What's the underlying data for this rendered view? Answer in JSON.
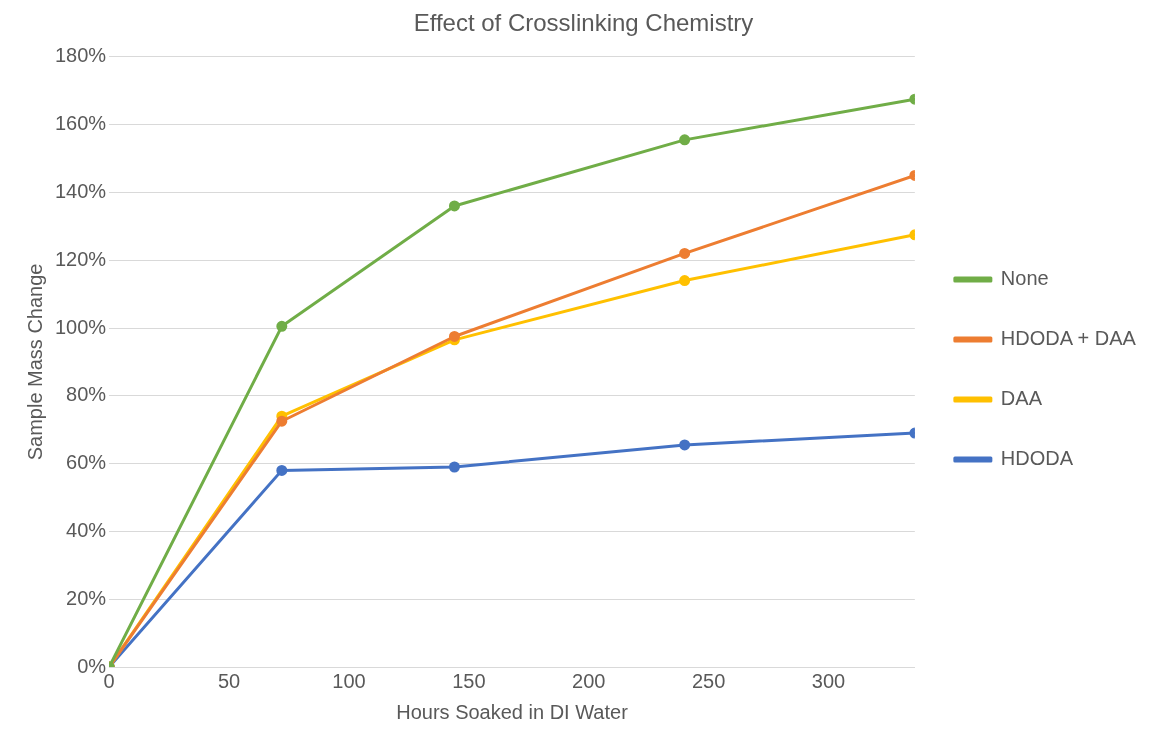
{
  "chart_data": {
    "type": "line",
    "title": "Effect of Crosslinking Chemistry",
    "xlabel": "Hours Soaked in DI Water",
    "ylabel": "Sample Mass Change",
    "x": [
      0,
      72,
      144,
      240,
      336
    ],
    "series": [
      {
        "name": "None",
        "color": "#70ad47",
        "values": [
          0,
          100.5,
          136,
          155.5,
          167.5
        ]
      },
      {
        "name": "HDODA + DAA",
        "color": "#ed7d31",
        "values": [
          0,
          72.5,
          97.5,
          122,
          145
        ]
      },
      {
        "name": "DAA",
        "color": "#ffc000",
        "values": [
          0,
          74,
          96.5,
          114,
          127.5
        ]
      },
      {
        "name": "HDODA",
        "color": "#4472c4",
        "values": [
          0,
          58,
          59,
          65.5,
          69
        ]
      }
    ],
    "xlim": [
      0,
      336
    ],
    "xticks": [
      0,
      50,
      100,
      150,
      200,
      250,
      300
    ],
    "ylim": [
      0,
      180
    ],
    "yticks": [
      {
        "value": 0,
        "label": "0%"
      },
      {
        "value": 20,
        "label": "20%"
      },
      {
        "value": 40,
        "label": "40%"
      },
      {
        "value": 60,
        "label": "60%"
      },
      {
        "value": 80,
        "label": "80%"
      },
      {
        "value": 100,
        "label": "100%"
      },
      {
        "value": 120,
        "label": "120%"
      },
      {
        "value": 140,
        "label": "140%"
      },
      {
        "value": 160,
        "label": "160%"
      },
      {
        "value": 180,
        "label": "180%"
      }
    ],
    "grid": "y",
    "legend": "right",
    "marker": "circle",
    "line_style": "solid"
  }
}
